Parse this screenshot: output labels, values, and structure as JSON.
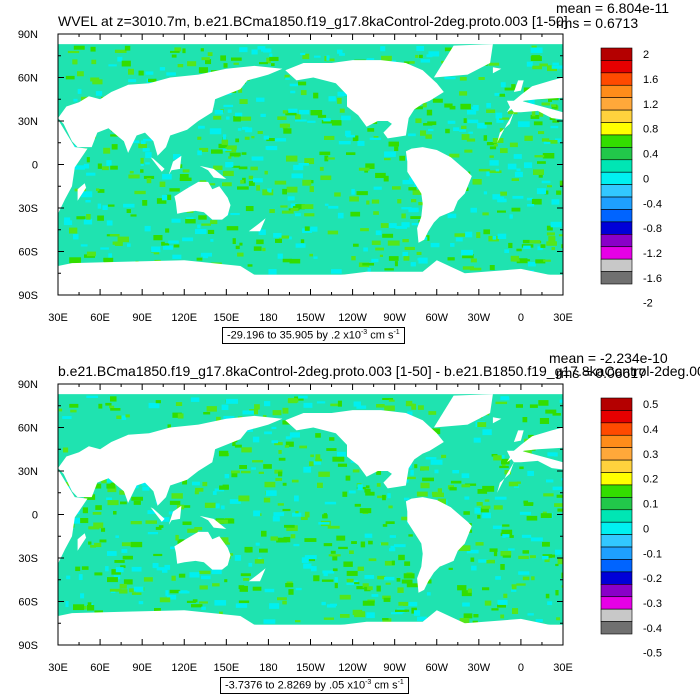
{
  "panels": [
    {
      "title": "WVEL at z=3010.7m, b.e21.BCma1850.f19_g17.8kaControl-2deg.proto.003 [1-50]",
      "mean": "mean = 6.804e-11",
      "rms": "rms = 0.6713",
      "info": {
        "range": "-29.196 to 35.905",
        "by": "by .2 x10",
        "exp": "-3",
        "unit": " cm s",
        "unit_exp": "-1"
      }
    },
    {
      "title": "b.e21.BCma1850.f19_g17.8kaControl-2deg.proto.003 [1-50] - b.e21.B1850.f19_g17.8kaControl-2deg.00",
      "mean": "mean = -2.234e-10",
      "rms": "rms = 0.06617",
      "info": {
        "range": "-3.7376 to 2.8269",
        "by": "by .05 x10",
        "exp": "-3",
        "unit": " cm s",
        "unit_exp": "-1"
      }
    }
  ],
  "chart_data": [
    {
      "type": "heatmap",
      "title": "WVEL at z=3010.7m, b.e21.BCma1850.f19_g17.8kaControl-2deg.proto.003 [1-50]",
      "xlabel": "",
      "ylabel": "",
      "x_ticks": [
        "30E",
        "60E",
        "90E",
        "120E",
        "150E",
        "180",
        "150W",
        "120W",
        "90W",
        "60W",
        "30W",
        "0",
        "30E"
      ],
      "y_ticks": [
        "90N",
        "60N",
        "30N",
        "0",
        "30S",
        "60S",
        "90S"
      ],
      "xlim": [
        30,
        390
      ],
      "ylim": [
        -90,
        90
      ],
      "mean": 6.804e-11,
      "rms": 0.6713,
      "data_min": -29.196,
      "data_max": 35.905,
      "contour_interval": 0.2,
      "colorbar_levels": [
        "2",
        "1.6",
        "1.2",
        "0.8",
        "0.4",
        "0",
        "-0.4",
        "-0.8",
        "-1.2",
        "-1.6",
        "-2"
      ],
      "colorbar_colors": [
        "#b40000",
        "#e60000",
        "#ff4a00",
        "#ff8c1a",
        "#ffa83a",
        "#ffd23d",
        "#ffff00",
        "#33dd00",
        "#22c84a",
        "#00e6b4",
        "#00f0f0",
        "#32c8ff",
        "#1ea0ff",
        "#0064ff",
        "#0000d8",
        "#8a00c8",
        "#e600e6",
        "#c8c8c8",
        "#707070"
      ]
    },
    {
      "type": "heatmap",
      "title": "b.e21.BCma1850.f19_g17.8kaControl-2deg.proto.003 [1-50] - b.e21.B1850.f19_g17.8kaControl-2deg.00",
      "xlabel": "",
      "ylabel": "",
      "x_ticks": [
        "30E",
        "60E",
        "90E",
        "120E",
        "150E",
        "180",
        "150W",
        "120W",
        "90W",
        "60W",
        "30W",
        "0",
        "30E"
      ],
      "y_ticks": [
        "90N",
        "60N",
        "30N",
        "0",
        "30S",
        "60S",
        "90S"
      ],
      "xlim": [
        30,
        390
      ],
      "ylim": [
        -90,
        90
      ],
      "mean": -2.234e-10,
      "rms": 0.06617,
      "data_min": -3.7376,
      "data_max": 2.8269,
      "contour_interval": 0.05,
      "colorbar_levels": [
        "0.5",
        "0.4",
        "0.3",
        "0.2",
        "0.1",
        "0",
        "-0.1",
        "-0.2",
        "-0.3",
        "-0.4",
        "-0.5"
      ],
      "colorbar_colors": [
        "#b40000",
        "#e60000",
        "#ff4a00",
        "#ff8c1a",
        "#ffa83a",
        "#ffd23d",
        "#ffff00",
        "#33dd00",
        "#22c84a",
        "#00e6b4",
        "#00f0f0",
        "#32c8ff",
        "#1ea0ff",
        "#0064ff",
        "#0000d8",
        "#8a00c8",
        "#e600e6",
        "#c8c8c8",
        "#707070"
      ]
    }
  ]
}
